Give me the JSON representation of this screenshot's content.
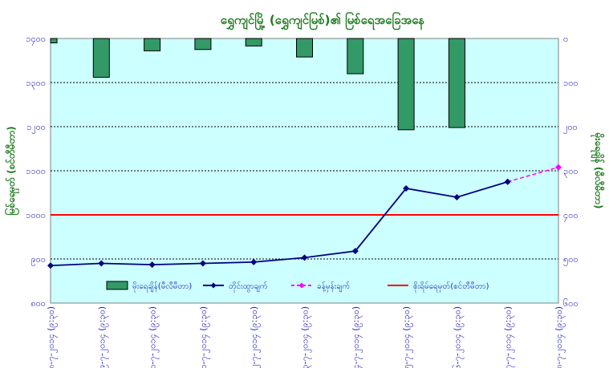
{
  "chart_data": {
    "type": "bar+line",
    "title": "ရွှေကျင်မြို့ (ရွှေကျင်မြစ်)၏ မြစ်ရေအခြေအနေ",
    "ylabel_left": "မြစ်ရေမှတ် (စင်တီမီတာ)",
    "ylabel_right": "မိုးရေချိန် (မီလီမီတာ)",
    "categories": [
      "၁၈-၇-၂၀၁၄ (၉:၃၀)",
      "၁၉-၇-၂၀၁၄ (၉:၃၀)",
      "၂၀-၇-၂၀၁၄ (၉:၃၀)",
      "၂၁-၇-၂၀၁၄ (၉:၃၀)",
      "၂၂-၇-၂၀၁၄ (၉:၃၀)",
      "၂၃-၇-၂၀၁၄ (၉:၃၀)",
      "၂၄-၇-၂၀၁၄ (၉:၃၀)",
      "၂၅-၇-၂၀၁၄ (၉:၃၀)",
      "၂၆-၇-၂၀၁၄ (၉:၃၀)",
      "၂၇-၇-၂၀၁၄ (၉:၃၀)",
      "၂၈-၇-၂၀၁၄ (၉:၃၀)"
    ],
    "left_axis": {
      "min": 800,
      "max": 1400,
      "ticks": [
        "၈၀၀",
        "၉၀၀",
        "၁၀၀၀",
        "၁၁၀၀",
        "၁၂၀၀",
        "၁၃၀၀",
        "၁၄၀၀"
      ]
    },
    "right_axis": {
      "min": 0,
      "max": 600,
      "inverted": true,
      "ticks": [
        "၀",
        "၁၀၀",
        "၂၀၀",
        "၃၀၀",
        "၄၀၀",
        "၅၀၀",
        "၆၀၀"
      ]
    },
    "series": [
      {
        "name": "မိုးရေချိန်(မီလီမီတာ)",
        "kind": "bar",
        "axis": "right",
        "color": "#339966",
        "values": [
          10,
          88,
          28,
          25,
          17,
          42,
          80,
          207,
          202,
          null,
          null
        ]
      },
      {
        "name": "တိုင်းထွာချက်",
        "kind": "line",
        "axis": "left",
        "color": "#000080",
        "values": [
          885,
          890,
          887,
          890,
          893,
          903,
          918,
          1060,
          1040,
          1075,
          null
        ]
      },
      {
        "name": "ခန့်မှန်းချက်",
        "kind": "dashed-line",
        "axis": "left",
        "color": "#ff00ff",
        "values": [
          null,
          null,
          null,
          null,
          null,
          null,
          null,
          null,
          null,
          1075,
          1108
        ]
      },
      {
        "name": "စိုးရိမ်ရေမှတ်(စင်တီမီတာ)",
        "kind": "reference",
        "axis": "left",
        "color": "#ff0000",
        "value": 1000
      }
    ],
    "grid": "horizontal dashed",
    "legend": "bottom",
    "colors": {
      "plot_bg": "#ccffff",
      "grid": "#000000",
      "tick_text": "#1f1fbf",
      "title_text": "#1e7a1e"
    }
  }
}
